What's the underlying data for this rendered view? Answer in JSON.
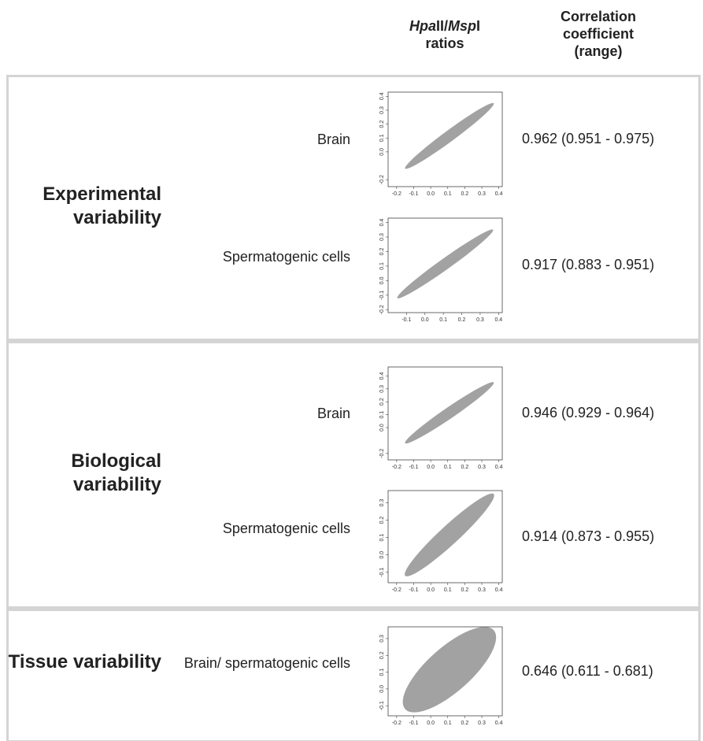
{
  "header": {
    "ratios": [
      {
        "text": "Hpa",
        "italic": true
      },
      {
        "text": "II/",
        "italic": false
      },
      {
        "text": "Msp",
        "italic": true
      },
      {
        "text": "I",
        "italic": false
      },
      {
        "text": "ratios",
        "italic": false
      }
    ],
    "correlation": "Correlation coefficient (range)"
  },
  "groups": [
    {
      "label": "Experimental variability",
      "rows": [
        {
          "sample": "Brain",
          "correlation": "0.962 (0.951 - 0.975)",
          "plot": {
            "type": "scatter",
            "xlim": [
              -0.25,
              0.42
            ],
            "ylim": [
              -0.25,
              0.43
            ],
            "xticks": [
              -0.2,
              -0.1,
              {
                "value": 0,
                "label": "0.0"
              },
              0.1,
              0.2,
              0.3,
              0.4
            ],
            "yticks": [
              -0.2,
              {
                "value": 0,
                "label": "0.0"
              },
              0.1,
              0.2,
              0.3,
              0.4
            ]
          }
        },
        {
          "sample": "Spermatogenic cells",
          "correlation": "0.917 (0.883 - 0.951)",
          "plot": {
            "type": "scatter",
            "xlim": [
              -0.2,
              0.42
            ],
            "ylim": [
              -0.22,
              0.43
            ],
            "xticks": [
              -0.1,
              {
                "value": 0,
                "label": "0.0"
              },
              0.1,
              0.2,
              0.3,
              0.4
            ],
            "yticks": [
              -0.2,
              -0.1,
              {
                "value": 0,
                "label": "0.0"
              },
              0.1,
              0.2,
              0.3,
              0.4
            ]
          }
        }
      ]
    },
    {
      "label": "Biological variability",
      "rows": [
        {
          "sample": "Brain",
          "correlation": "0.946 (0.929 - 0.964)",
          "plot": {
            "type": "scatter",
            "xlim": [
              -0.25,
              0.42
            ],
            "ylim": [
              -0.25,
              0.47
            ],
            "xticks": [
              -0.2,
              -0.1,
              {
                "value": 0,
                "label": "0.0"
              },
              0.1,
              0.2,
              0.3,
              0.4
            ],
            "yticks": [
              -0.2,
              {
                "value": 0,
                "label": "0.0"
              },
              0.1,
              0.2,
              0.3,
              0.4
            ]
          }
        },
        {
          "sample": "Spermatogenic cells",
          "correlation": "0.914 (0.873 - 0.955)",
          "plot": {
            "type": "scatter",
            "xlim": [
              -0.25,
              0.42
            ],
            "ylim": [
              -0.16,
              0.37
            ],
            "xticks": [
              -0.2,
              -0.1,
              {
                "value": 0,
                "label": "0.0"
              },
              0.1,
              0.2,
              0.3,
              0.4
            ],
            "yticks": [
              -0.1,
              {
                "value": 0,
                "label": "0.0"
              },
              0.1,
              0.2,
              0.3
            ]
          }
        }
      ]
    },
    {
      "label": "Tissue variability",
      "rows": [
        {
          "sample": "Brain/ spermatogenic cells",
          "correlation": "0.646 (0.611 - 0.681)",
          "plot": {
            "type": "scatter",
            "xlim": [
              -0.25,
              0.42
            ],
            "ylim": [
              -0.16,
              0.37
            ],
            "xticks": [
              -0.2,
              -0.1,
              {
                "value": 0,
                "label": "0.0"
              },
              0.1,
              0.2,
              0.3,
              0.4
            ],
            "yticks": [
              -0.1,
              {
                "value": 0,
                "label": "0.0"
              },
              0.1,
              0.2,
              0.3
            ]
          }
        }
      ]
    }
  ]
}
